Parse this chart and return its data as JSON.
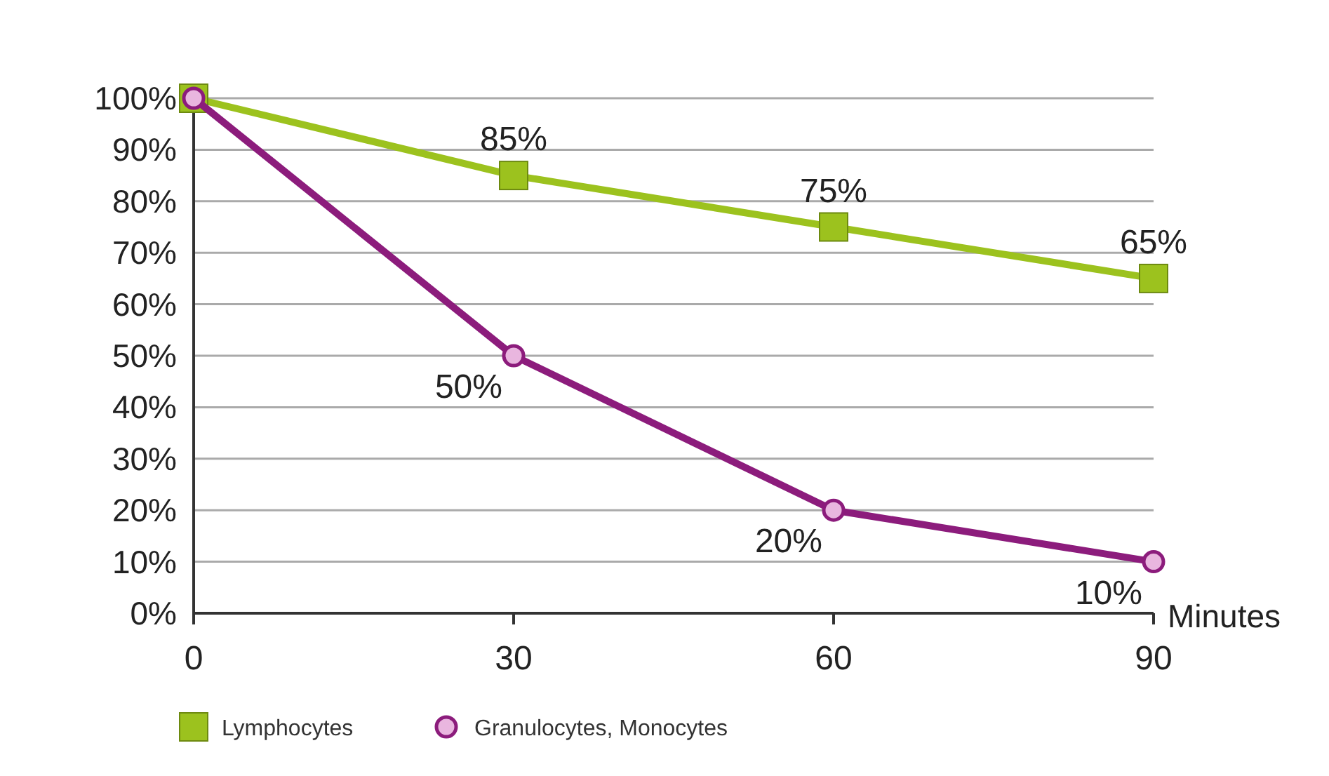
{
  "chart_data": {
    "type": "line",
    "xlabel": "Minutes",
    "x": [
      0,
      30,
      60,
      90
    ],
    "xlim": [
      0,
      90
    ],
    "xticks": [
      0,
      30,
      60,
      90
    ],
    "ylim": [
      0,
      100
    ],
    "yticks": [
      {
        "value": 0,
        "label": "0%"
      },
      {
        "value": 10,
        "label": "10%"
      },
      {
        "value": 20,
        "label": "20%"
      },
      {
        "value": 30,
        "label": "30%"
      },
      {
        "value": 40,
        "label": "40%"
      },
      {
        "value": 50,
        "label": "50%"
      },
      {
        "value": 60,
        "label": "60%"
      },
      {
        "value": 70,
        "label": "70%"
      },
      {
        "value": 80,
        "label": "80%"
      },
      {
        "value": 90,
        "label": "90%"
      },
      {
        "value": 100,
        "label": "100%"
      }
    ],
    "grid": "y",
    "legend": "bottom left",
    "line_style": "solid",
    "series": [
      {
        "name": "Lymphocytes",
        "color": "#9cc21e",
        "marker": "square",
        "values": [
          100,
          85,
          75,
          65
        ],
        "value_labels": [
          null,
          "85%",
          "75%",
          "65%"
        ]
      },
      {
        "name": "Granulocytes, Monocytes",
        "color": "#8c1c7c",
        "marker": "circle",
        "values": [
          100,
          50,
          20,
          10
        ],
        "value_labels": [
          null,
          "50%",
          "20%",
          "10%"
        ]
      }
    ]
  }
}
